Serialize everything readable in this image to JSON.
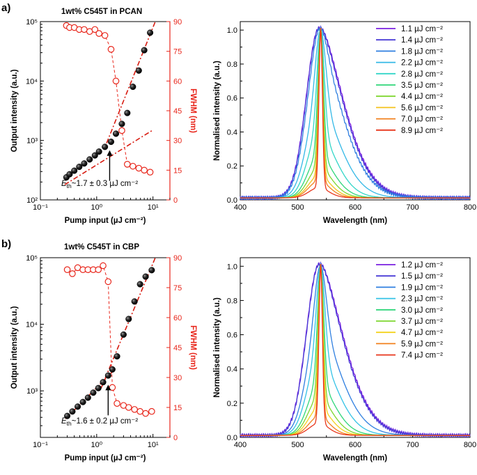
{
  "panels": [
    {
      "label": "a)",
      "left": {
        "title": "1wt% C545T in PCAN",
        "xlabel": "Pump input (µJ cm⁻²)",
        "ylabel": "Output intensity (a.u.)",
        "y2label": "FWHM (nm)",
        "xticks": [
          "10⁻¹",
          "10⁰",
          "10¹"
        ],
        "yticks": [
          "10²",
          "10³",
          "10⁴",
          "10⁵"
        ],
        "y2ticks": [
          "0",
          "15",
          "30",
          "45",
          "60",
          "75",
          "90"
        ],
        "annotation": "E_th ~1.7 ± 0.3 µJ cm⁻²"
      },
      "right": {
        "xlabel": "Wavelength (nm)",
        "ylabel": "Normalised intensity (a.u.)",
        "xticks": [
          "400",
          "500",
          "600",
          "700",
          "800"
        ],
        "yticks": [
          "0.0",
          "0.2",
          "0.4",
          "0.6",
          "0.8",
          "1.0"
        ],
        "legend": [
          "1.1 µJ cm⁻²",
          "1.4 µJ cm⁻²",
          "1.8 µJ cm⁻²",
          "2.2 µJ cm⁻²",
          "2.8 µJ cm⁻²",
          "3.5 µJ cm⁻²",
          "4.4 µJ cm⁻²",
          "5.6 µJ cm⁻²",
          "7.0 µJ cm⁻²",
          "8.9 µJ cm⁻²"
        ]
      }
    },
    {
      "label": "b)",
      "left": {
        "title": "1wt% C545T in CBP",
        "xlabel": "Pump input (µJ cm⁻²)",
        "ylabel": "Output intensity (a.u.)",
        "y2label": "FWHM (nm)",
        "xticks": [
          "10⁻¹",
          "10⁰",
          "10¹"
        ],
        "yticks": [
          "10³",
          "10⁴",
          "10⁵"
        ],
        "y2ticks": [
          "0",
          "15",
          "30",
          "45",
          "60",
          "75",
          "90"
        ],
        "annotation": "E_th ~1.6 ± 0.2 µJ cm⁻²"
      },
      "right": {
        "xlabel": "Wavelength (nm)",
        "ylabel": "Normalised intensity (a.u.)",
        "xticks": [
          "400",
          "500",
          "600",
          "700",
          "800"
        ],
        "yticks": [
          "0.0",
          "0.2",
          "0.4",
          "0.6",
          "0.8",
          "1.0"
        ],
        "legend": [
          "1.2 µJ cm⁻²",
          "1.5 µJ cm⁻²",
          "1.9 µJ cm⁻²",
          "2.3 µJ cm⁻²",
          "3.0 µJ cm⁻²",
          "3.7 µJ cm⁻²",
          "4.7 µJ cm⁻²",
          "5.9 µJ cm⁻²",
          "7.4 µJ cm⁻²"
        ]
      }
    }
  ],
  "colors": {
    "fwhm": "#e8261b",
    "fit": "#d81b10",
    "points": "#111111",
    "spectra_a": [
      "#7a1fe0",
      "#4a3bd6",
      "#2f7fe0",
      "#33b8e6",
      "#33d6c8",
      "#2fd67a",
      "#7ed62f",
      "#f4c21c",
      "#f2801c",
      "#e8361b"
    ],
    "spectra_b": [
      "#7a1fe0",
      "#4a3bd6",
      "#2f7fe0",
      "#33c2e6",
      "#2fd67a",
      "#7ed62f",
      "#f4d21c",
      "#f2801c",
      "#e8361b"
    ]
  },
  "chart_data": [
    {
      "type": "scatter",
      "panel": "a",
      "title": "1wt% C545T in PCAN",
      "xlabel": "Pump input (µJ cm⁻²)",
      "ylabel": "Output intensity (a.u.)",
      "y2label": "FWHM (nm)",
      "xscale": "log",
      "yscale": "log",
      "xlim": [
        0.1,
        20
      ],
      "ylim": [
        100,
        100000
      ],
      "y2lim": [
        0,
        90
      ],
      "series": [
        {
          "axis": "y",
          "x": [
            0.29,
            0.33,
            0.4,
            0.49,
            0.6,
            0.75,
            0.93,
            1.1,
            1.4,
            1.8,
            2.2,
            2.8,
            3.5,
            4.4,
            5.6,
            7.0,
            8.9
          ],
          "values": [
            240,
            270,
            310,
            360,
            410,
            480,
            560,
            650,
            780,
            950,
            1300,
            1900,
            2900,
            8000,
            15000,
            33000,
            65000
          ]
        },
        {
          "axis": "y2",
          "x": [
            0.29,
            0.33,
            0.4,
            0.49,
            0.6,
            0.75,
            0.93,
            1.1,
            1.4,
            1.8,
            2.2,
            2.8,
            3.5,
            4.4,
            5.6,
            7.0,
            8.9
          ],
          "values": [
            88,
            87,
            87,
            86,
            86,
            85,
            86,
            84,
            83,
            76,
            60,
            35,
            18,
            17,
            16,
            15,
            14
          ]
        }
      ],
      "fit_lines": [
        {
          "x": [
            0.27,
            10
          ],
          "y": [
            180,
            1500
          ]
        },
        {
          "x": [
            1.5,
            11
          ],
          "y": [
            900,
            100000
          ]
        }
      ],
      "threshold": 1.7
    },
    {
      "type": "line",
      "panel": "a",
      "xlabel": "Wavelength (nm)",
      "ylabel": "Normalised intensity (a.u.)",
      "xlim": [
        400,
        800
      ],
      "ylim": [
        0,
        1.05
      ],
      "peak_nm": 540,
      "series": [
        {
          "name": "1.1 µJ cm⁻²",
          "shoulder": 0.99,
          "width": 1.0
        },
        {
          "name": "1.4 µJ cm⁻²",
          "shoulder": 0.97,
          "width": 0.98
        },
        {
          "name": "1.8 µJ cm⁻²",
          "shoulder": 0.85,
          "width": 0.95
        },
        {
          "name": "2.2 µJ cm⁻²",
          "shoulder": 0.55,
          "width": 0.8
        },
        {
          "name": "2.8 µJ cm⁻²",
          "shoulder": 0.38,
          "width": 0.62
        },
        {
          "name": "3.5 µJ cm⁻²",
          "shoulder": 0.25,
          "width": 0.5
        },
        {
          "name": "4.4 µJ cm⁻²",
          "shoulder": 0.18,
          "width": 0.42
        },
        {
          "name": "5.6 µJ cm⁻²",
          "shoulder": 0.13,
          "width": 0.36
        },
        {
          "name": "7.0 µJ cm⁻²",
          "shoulder": 0.1,
          "width": 0.3
        },
        {
          "name": "8.9 µJ cm⁻²",
          "shoulder": 0.06,
          "width": 0.25
        }
      ]
    },
    {
      "type": "scatter",
      "panel": "b",
      "title": "1wt% C545T in CBP",
      "xlabel": "Pump input (µJ cm⁻²)",
      "ylabel": "Output intensity (a.u.)",
      "y2label": "FWHM (nm)",
      "xscale": "log",
      "yscale": "log",
      "xlim": [
        0.1,
        20
      ],
      "ylim": [
        200,
        100000
      ],
      "y2lim": [
        0,
        90
      ],
      "series": [
        {
          "axis": "y",
          "x": [
            0.3,
            0.37,
            0.46,
            0.57,
            0.7,
            0.87,
            1.07,
            1.3,
            1.6,
            1.9,
            2.3,
            3.0,
            3.7,
            4.7,
            5.9,
            7.4,
            9.5
          ],
          "values": [
            420,
            490,
            580,
            680,
            790,
            940,
            1100,
            1350,
            1700,
            2100,
            3300,
            7000,
            12000,
            22000,
            40000,
            52000,
            65000
          ]
        },
        {
          "axis": "y2",
          "x": [
            0.3,
            0.37,
            0.46,
            0.57,
            0.7,
            0.87,
            1.07,
            1.3,
            1.6,
            1.9,
            2.3,
            3.0,
            3.7,
            4.7,
            5.9,
            7.4,
            9.5
          ],
          "values": [
            84,
            82,
            85,
            84,
            84,
            84,
            84,
            86,
            78,
            25,
            17,
            16,
            15,
            14,
            13,
            12,
            13
          ]
        }
      ],
      "fit_lines": [
        {
          "x": [
            0.28,
            2.1
          ],
          "y": [
            380,
            2100
          ]
        },
        {
          "x": [
            1.2,
            11
          ],
          "y": [
            1100,
            100000
          ]
        }
      ],
      "threshold": 1.6
    },
    {
      "type": "line",
      "panel": "b",
      "xlabel": "Wavelength (nm)",
      "ylabel": "Normalised intensity (a.u.)",
      "xlim": [
        400,
        800
      ],
      "ylim": [
        0,
        1.05
      ],
      "peak_nm": 540,
      "series": [
        {
          "name": "1.2 µJ cm⁻²",
          "shoulder": 0.99,
          "width": 1.0
        },
        {
          "name": "1.5 µJ cm⁻²",
          "shoulder": 0.97,
          "width": 0.98
        },
        {
          "name": "1.9 µJ cm⁻²",
          "shoulder": 0.62,
          "width": 0.85
        },
        {
          "name": "2.3 µJ cm⁻²",
          "shoulder": 0.45,
          "width": 0.7
        },
        {
          "name": "3.0 µJ cm⁻²",
          "shoulder": 0.3,
          "width": 0.55
        },
        {
          "name": "3.7 µJ cm⁻²",
          "shoulder": 0.22,
          "width": 0.45
        },
        {
          "name": "4.7 µJ cm⁻²",
          "shoulder": 0.16,
          "width": 0.38
        },
        {
          "name": "5.9 µJ cm⁻²",
          "shoulder": 0.11,
          "width": 0.3
        },
        {
          "name": "7.4 µJ cm⁻²",
          "shoulder": 0.07,
          "width": 0.25
        }
      ]
    }
  ]
}
